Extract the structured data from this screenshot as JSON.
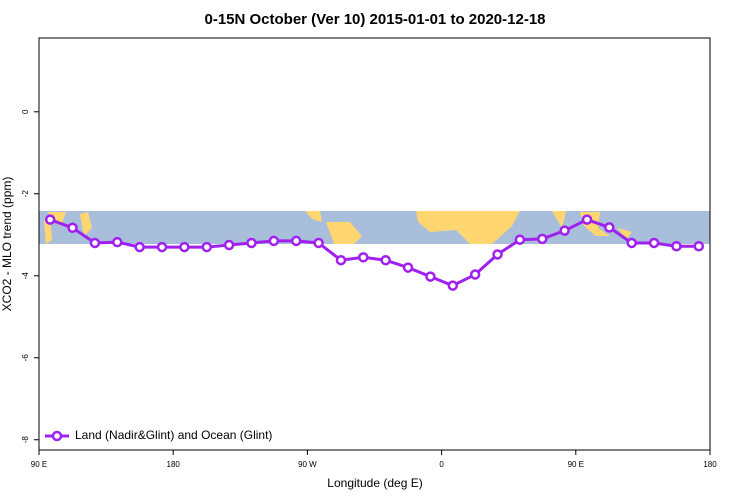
{
  "chart_data": {
    "type": "line",
    "title": "0-15N October (Ver 10)   2015-01-01 to 2020-12-18",
    "x_label": "Longitude (deg E)",
    "y_label": "XCO2 - MLO trend (ppm)",
    "x": [
      97.5,
      112.5,
      127.5,
      142.5,
      157.5,
      172.5,
      187.5,
      202.5,
      217.5,
      232.5,
      247.5,
      262.5,
      277.5,
      292.5,
      307.5,
      322.5,
      337.5,
      352.5,
      367.5,
      382.5,
      397.5,
      412.5,
      427.5,
      442.5,
      457.5,
      472.5,
      487.5,
      502.5,
      517.5,
      532.5
    ],
    "series": [
      {
        "name": "Land (Nadir&Glint) and Ocean (Glint)",
        "color": "#a020f0",
        "values": [
          -2.63,
          -2.83,
          -3.2,
          -3.18,
          -3.3,
          -3.3,
          -3.3,
          -3.3,
          -3.25,
          -3.2,
          -3.15,
          -3.15,
          -3.2,
          -3.62,
          -3.55,
          -3.62,
          -3.8,
          -4.02,
          -4.24,
          -3.97,
          -3.48,
          -3.12,
          -3.1,
          -2.9,
          -2.63,
          -2.82,
          -3.2,
          -3.2,
          -3.28,
          -3.28
        ]
      }
    ],
    "xlim": [
      90,
      540
    ],
    "xticks": [
      {
        "value": 90,
        "label": "90 E"
      },
      {
        "value": 180,
        "label": "180"
      },
      {
        "value": 270,
        "label": "90 W"
      },
      {
        "value": 360,
        "label": "0"
      },
      {
        "value": 450,
        "label": "90 E"
      },
      {
        "value": 540,
        "label": "180"
      }
    ],
    "ylim": [
      -8.25,
      1.8
    ],
    "yticks": [
      -8,
      -6,
      -4,
      -2,
      0
    ],
    "legend": "bottom-left"
  }
}
